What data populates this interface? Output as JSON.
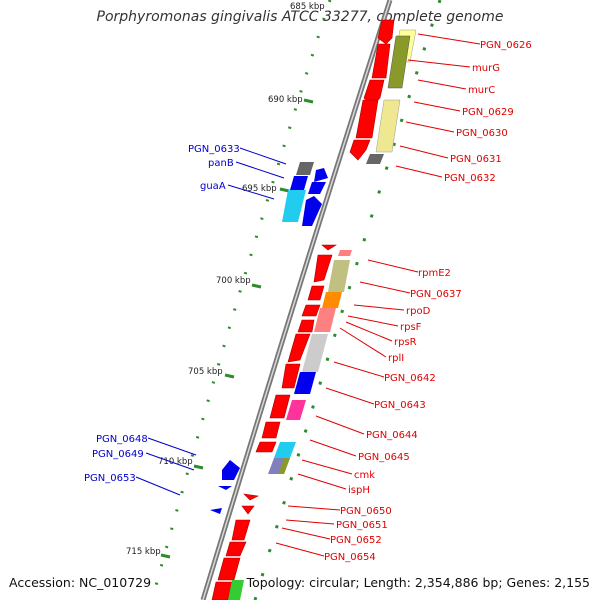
{
  "title": "Porphyromonas gingivalis ATCC 33277, complete genome",
  "footer": {
    "accession": "Accession: NC_010729",
    "topology": "Topology: circular; Length: 2,354,886 bp; Genes: 2,155"
  },
  "scale_labels": [
    "685 kbp",
    "690 kbp",
    "695 kbp",
    "700 kbp",
    "705 kbp",
    "710 kbp",
    "715 kbp"
  ],
  "forward_genes": [
    "PGN_0626",
    "murG",
    "murC",
    "PGN_0629",
    "PGN_0630",
    "PGN_0631",
    "PGN_0632"
  ],
  "reverse_genes": [
    "rpmE2",
    "PGN_0637",
    "rpoD",
    "rpsF",
    "rpsR",
    "rplI",
    "PGN_0642",
    "PGN_0643",
    "PGN_0644",
    "PGN_0645",
    "cmk",
    "ispH",
    "PGN_0650",
    "PGN_0651",
    "PGN_0652",
    "PGN_0654"
  ],
  "blue_genes": [
    "PGN_0633",
    "panB",
    "guaA",
    "PGN_0648",
    "PGN_0649",
    "PGN_0653"
  ],
  "colors": {
    "red": "#e00000",
    "blue": "#0000cc",
    "backbone": "#888888",
    "tick": "#2e8b2e"
  }
}
